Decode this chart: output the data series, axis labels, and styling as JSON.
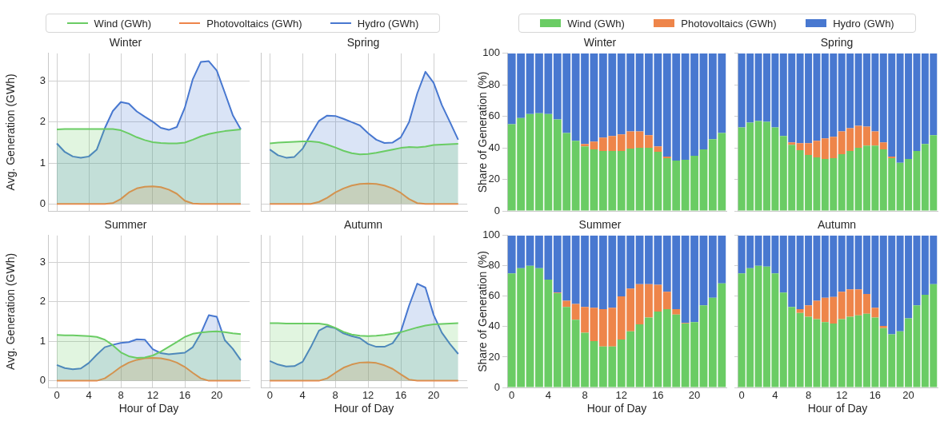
{
  "chart_data": [
    {
      "type": "area",
      "title": "Winter",
      "ylabel": "Avg. Generation (GWh)",
      "x": [
        0,
        1,
        2,
        3,
        4,
        5,
        6,
        7,
        8,
        9,
        10,
        11,
        12,
        13,
        14,
        15,
        16,
        17,
        18,
        19,
        20,
        21,
        22,
        23
      ],
      "xlim": [
        -1.1,
        24.1
      ],
      "xticks": [
        0,
        4,
        8,
        12,
        16,
        20
      ],
      "ylim": [
        -0.17,
        3.68
      ],
      "yticks": [
        0,
        1,
        2,
        3
      ],
      "grid": true,
      "legend": "top",
      "tick_labels": "y",
      "series": [
        {
          "name": "Wind (GWh)",
          "color": "#6acc64",
          "values": [
            1.82,
            1.83,
            1.83,
            1.83,
            1.83,
            1.83,
            1.83,
            1.83,
            1.8,
            1.72,
            1.63,
            1.56,
            1.51,
            1.49,
            1.48,
            1.48,
            1.5,
            1.57,
            1.65,
            1.71,
            1.75,
            1.78,
            1.8,
            1.82
          ]
        },
        {
          "name": "Photovoltaics (GWh)",
          "color": "#ee854a",
          "values": [
            0,
            0,
            0,
            0,
            0,
            0,
            0,
            0.02,
            0.12,
            0.28,
            0.38,
            0.42,
            0.43,
            0.41,
            0.35,
            0.25,
            0.08,
            0.01,
            0,
            0,
            0,
            0,
            0,
            0
          ]
        },
        {
          "name": "Hydro (GWh)",
          "color": "#4878d0",
          "values": [
            1.48,
            1.27,
            1.16,
            1.13,
            1.16,
            1.33,
            1.85,
            2.27,
            2.49,
            2.45,
            2.26,
            2.13,
            2.01,
            1.86,
            1.81,
            1.88,
            2.35,
            3.05,
            3.47,
            3.49,
            3.26,
            2.72,
            2.17,
            1.82
          ]
        }
      ]
    },
    {
      "type": "area",
      "title": "Spring",
      "x": [
        0,
        1,
        2,
        3,
        4,
        5,
        6,
        7,
        8,
        9,
        10,
        11,
        12,
        13,
        14,
        15,
        16,
        17,
        18,
        19,
        20,
        21,
        22,
        23
      ],
      "xlim": [
        -1.1,
        24.1
      ],
      "xticks": [
        0,
        4,
        8,
        12,
        16,
        20
      ],
      "ylim": [
        -0.17,
        3.68
      ],
      "yticks": [
        0,
        1,
        2,
        3
      ],
      "grid": true,
      "tick_labels": false,
      "series": [
        {
          "color": "#6acc64",
          "values": [
            1.48,
            1.5,
            1.51,
            1.52,
            1.53,
            1.53,
            1.51,
            1.45,
            1.38,
            1.3,
            1.24,
            1.21,
            1.22,
            1.25,
            1.29,
            1.33,
            1.37,
            1.39,
            1.38,
            1.4,
            1.44,
            1.45,
            1.46,
            1.47
          ]
        },
        {
          "color": "#ee854a",
          "values": [
            0,
            0,
            0,
            0,
            0,
            0,
            0.05,
            0.15,
            0.28,
            0.38,
            0.45,
            0.49,
            0.5,
            0.49,
            0.45,
            0.38,
            0.27,
            0.12,
            0.02,
            0,
            0,
            0,
            0,
            0
          ]
        },
        {
          "color": "#4878d0",
          "values": [
            1.33,
            1.19,
            1.13,
            1.15,
            1.35,
            1.7,
            2.03,
            2.16,
            2.15,
            2.08,
            2,
            1.92,
            1.73,
            1.57,
            1.49,
            1.5,
            1.63,
            2,
            2.7,
            3.23,
            2.96,
            2.42,
            2,
            1.57
          ]
        }
      ]
    },
    {
      "type": "area",
      "title": "Summer",
      "xlabel": "Hour of Day",
      "ylabel": "Avg. Generation (GWh)",
      "x": [
        0,
        1,
        2,
        3,
        4,
        5,
        6,
        7,
        8,
        9,
        10,
        11,
        12,
        13,
        14,
        15,
        16,
        17,
        18,
        19,
        20,
        21,
        22,
        23
      ],
      "xlim": [
        -1.1,
        24.1
      ],
      "xticks": [
        0,
        4,
        8,
        12,
        16,
        20
      ],
      "ylim": [
        -0.17,
        3.68
      ],
      "yticks": [
        0,
        1,
        2,
        3
      ],
      "grid": true,
      "series": [
        {
          "color": "#6acc64",
          "values": [
            1.16,
            1.15,
            1.15,
            1.14,
            1.13,
            1.11,
            1.04,
            0.9,
            0.72,
            0.62,
            0.58,
            0.59,
            0.64,
            0.74,
            0.86,
            0.98,
            1.11,
            1.19,
            1.22,
            1.24,
            1.25,
            1.23,
            1.2,
            1.18
          ]
        },
        {
          "color": "#ee854a",
          "values": [
            0,
            0,
            0,
            0,
            0,
            0,
            0.06,
            0.2,
            0.35,
            0.46,
            0.53,
            0.57,
            0.58,
            0.57,
            0.53,
            0.46,
            0.35,
            0.2,
            0.06,
            0,
            0,
            0,
            0,
            0
          ]
        },
        {
          "color": "#4878d0",
          "values": [
            0.4,
            0.32,
            0.29,
            0.31,
            0.45,
            0.66,
            0.85,
            0.91,
            0.96,
            0.98,
            1.05,
            1.04,
            0.8,
            0.7,
            0.67,
            0.69,
            0.71,
            0.85,
            1.2,
            1.66,
            1.62,
            1.03,
            0.81,
            0.52
          ]
        }
      ]
    },
    {
      "type": "area",
      "title": "Autumn",
      "xlabel": "Hour of Day",
      "x": [
        0,
        1,
        2,
        3,
        4,
        5,
        6,
        7,
        8,
        9,
        10,
        11,
        12,
        13,
        14,
        15,
        16,
        17,
        18,
        19,
        20,
        21,
        22,
        23
      ],
      "xlim": [
        -1.1,
        24.1
      ],
      "xticks": [
        0,
        4,
        8,
        12,
        16,
        20
      ],
      "ylim": [
        -0.17,
        3.68
      ],
      "yticks": [
        0,
        1,
        2,
        3
      ],
      "grid": true,
      "tick_labels": "x",
      "series": [
        {
          "color": "#6acc64",
          "values": [
            1.46,
            1.46,
            1.45,
            1.45,
            1.45,
            1.45,
            1.45,
            1.42,
            1.34,
            1.24,
            1.17,
            1.14,
            1.13,
            1.14,
            1.16,
            1.19,
            1.23,
            1.29,
            1.35,
            1.4,
            1.43,
            1.44,
            1.45,
            1.46
          ]
        },
        {
          "color": "#ee854a",
          "values": [
            0,
            0,
            0,
            0,
            0,
            0,
            0,
            0.06,
            0.2,
            0.33,
            0.41,
            0.46,
            0.47,
            0.45,
            0.39,
            0.3,
            0.16,
            0.03,
            0,
            0,
            0,
            0,
            0,
            0
          ]
        },
        {
          "color": "#4878d0",
          "values": [
            0.5,
            0.41,
            0.36,
            0.37,
            0.48,
            0.85,
            1.27,
            1.38,
            1.33,
            1.2,
            1.13,
            1.08,
            0.93,
            0.86,
            0.86,
            0.95,
            1.25,
            1.9,
            2.46,
            2.36,
            1.67,
            1.22,
            0.93,
            0.68
          ]
        }
      ]
    },
    {
      "type": "bar",
      "stacked": true,
      "title": "Winter",
      "ylabel": "Share of Generation (%)",
      "categories": [
        "0",
        null,
        null,
        null,
        "4",
        null,
        null,
        null,
        "8",
        null,
        null,
        null,
        "12",
        null,
        null,
        null,
        "16",
        null,
        null,
        null,
        "20",
        null,
        null,
        null
      ],
      "ylim": [
        0,
        100
      ],
      "yticks": [
        0,
        20,
        40,
        60,
        80,
        100
      ],
      "legend": "top",
      "tick_labels": "y",
      "series": [
        {
          "name": "Wind (GWh)",
          "color": "#6acc64",
          "values": [
            55,
            59,
            61.5,
            62,
            61.5,
            58,
            49.5,
            44.5,
            41,
            39,
            38,
            38,
            38,
            39.5,
            40,
            40,
            37.5,
            33.5,
            32,
            32.5,
            35,
            39,
            45.5,
            49.5
          ]
        },
        {
          "name": "Photovoltaics (GWh)",
          "color": "#ee854a",
          "values": [
            0,
            0,
            0,
            0,
            0,
            0,
            0,
            0,
            1.5,
            5,
            8.5,
            9.5,
            10.5,
            11,
            10.5,
            8,
            3.5,
            1,
            0,
            0,
            0,
            0,
            0,
            0
          ]
        },
        {
          "name": "Hydro (GWh)",
          "color": "#4878d0",
          "values": [
            45,
            41,
            38.5,
            38,
            38.5,
            42,
            50.5,
            55.5,
            57.5,
            56,
            53.5,
            52.5,
            51.5,
            49.5,
            49.5,
            52,
            59,
            65.5,
            68,
            67.5,
            65,
            61,
            54.5,
            50.5
          ]
        }
      ]
    },
    {
      "type": "bar",
      "stacked": true,
      "title": "Spring",
      "categories": [
        "0",
        null,
        null,
        null,
        "4",
        null,
        null,
        null,
        "8",
        null,
        null,
        null,
        "12",
        null,
        null,
        null,
        "16",
        null,
        null,
        null,
        "20",
        null,
        null,
        null
      ],
      "ylim": [
        0,
        100
      ],
      "yticks": [
        0,
        20,
        40,
        60,
        80,
        100
      ],
      "tick_labels": false,
      "series": [
        {
          "color": "#6acc64",
          "values": [
            53,
            56,
            57,
            56.5,
            53,
            47.5,
            42,
            38.5,
            35.5,
            34,
            33,
            33.5,
            36,
            38,
            40,
            41.5,
            41.5,
            39,
            33.5,
            30.5,
            33,
            38,
            42.5,
            48
          ]
        },
        {
          "color": "#ee854a",
          "values": [
            0,
            0,
            0,
            0,
            0,
            0,
            1.5,
            4.5,
            7.5,
            10.5,
            13,
            13.5,
            14.5,
            14.5,
            14,
            12,
            9,
            4.5,
            1,
            0,
            0,
            0,
            0,
            0
          ]
        },
        {
          "color": "#4878d0",
          "values": [
            47,
            44,
            43,
            43.5,
            47,
            52.5,
            56.5,
            57,
            57,
            55.5,
            54,
            53,
            49.5,
            47.5,
            46,
            46.5,
            49.5,
            56.5,
            65.5,
            69.5,
            67,
            62,
            57.5,
            52
          ]
        }
      ]
    },
    {
      "type": "bar",
      "stacked": true,
      "title": "Summer",
      "xlabel": "Hour of Day",
      "ylabel": "Share of Generation (%)",
      "categories": [
        "0",
        null,
        null,
        null,
        "4",
        null,
        null,
        null,
        "8",
        null,
        null,
        null,
        "12",
        null,
        null,
        null,
        "16",
        null,
        null,
        null,
        "20",
        null,
        null,
        null
      ],
      "ylim": [
        0,
        100
      ],
      "yticks": [
        0,
        20,
        40,
        60,
        80,
        100
      ],
      "series": [
        {
          "color": "#6acc64",
          "values": [
            75,
            78.5,
            80,
            78.5,
            71,
            62,
            53,
            44.5,
            36,
            30.5,
            27,
            27,
            31.5,
            37,
            41.5,
            46,
            50,
            51.5,
            48,
            42,
            43,
            54,
            59,
            68.5
          ]
        },
        {
          "color": "#ee854a",
          "values": [
            0,
            0,
            0,
            0,
            0,
            0.5,
            4,
            10.5,
            17,
            22,
            24.5,
            25.5,
            28.5,
            28,
            26.5,
            22,
            17.5,
            11.5,
            3.5,
            0.5,
            0,
            0,
            0,
            0
          ]
        },
        {
          "color": "#4878d0",
          "values": [
            25,
            21.5,
            20,
            21.5,
            29,
            37.5,
            43,
            45,
            47,
            47.5,
            48.5,
            47.5,
            40,
            35,
            32,
            32,
            32.5,
            37,
            48.5,
            57.5,
            57,
            46,
            41,
            31.5
          ]
        }
      ]
    },
    {
      "type": "bar",
      "stacked": true,
      "title": "Autumn",
      "xlabel": "Hour of Day",
      "categories": [
        "0",
        null,
        null,
        null,
        "4",
        null,
        null,
        null,
        "8",
        null,
        null,
        null,
        "12",
        null,
        null,
        null,
        "16",
        null,
        null,
        null,
        "20",
        null,
        null,
        null
      ],
      "ylim": [
        0,
        100
      ],
      "yticks": [
        0,
        20,
        40,
        60,
        80,
        100
      ],
      "tick_labels": "x",
      "series": [
        {
          "color": "#6acc64",
          "values": [
            75,
            78.5,
            80,
            79.5,
            75,
            62.5,
            53,
            49,
            46.5,
            45,
            43,
            42,
            45,
            46.5,
            47.5,
            48.5,
            46,
            39,
            35,
            37,
            45.5,
            54,
            61,
            68
          ]
        },
        {
          "color": "#ee854a",
          "values": [
            0,
            0,
            0,
            0,
            0,
            0,
            0,
            2.5,
            7.5,
            12,
            16,
            17.5,
            18,
            18,
            17,
            13,
            6.5,
            1.5,
            0,
            0,
            0,
            0,
            0,
            0
          ]
        },
        {
          "color": "#4878d0",
          "values": [
            25,
            21.5,
            20,
            20.5,
            25,
            37.5,
            47,
            48.5,
            46,
            43,
            41,
            40.5,
            37,
            35.5,
            35.5,
            38.5,
            47.5,
            59.5,
            65,
            63,
            54.5,
            46,
            39,
            32
          ]
        }
      ]
    }
  ]
}
